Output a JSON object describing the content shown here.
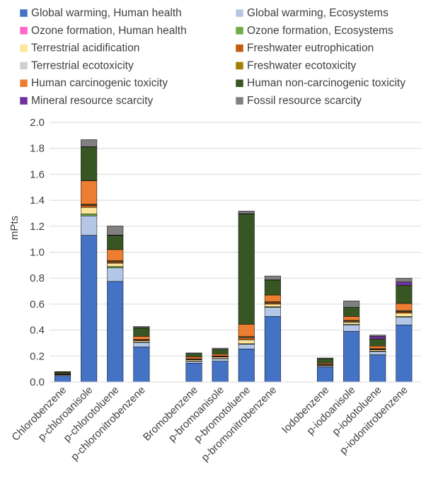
{
  "chart_data": {
    "type": "bar",
    "stacked": true,
    "ylabel": "mPts",
    "ylim": [
      0,
      2.0
    ],
    "yticks": [
      "0.0",
      "0.2",
      "0.4",
      "0.6",
      "0.8",
      "1.0",
      "1.2",
      "1.4",
      "1.6",
      "1.8",
      "2.0"
    ],
    "grid": true,
    "legend_position": "top",
    "groups": [
      [
        "Chlorobenzene",
        "p-chloroanisole",
        "p-chlorotoluene",
        "p-chloronitrobenzene"
      ],
      [
        "Bromobenzene",
        "p-bromoanisole",
        "p-bromotoluene",
        "p-bromonitrobenzene"
      ],
      [
        "Iodobenzene",
        "p-iodoanisole",
        "p-iodotoluene",
        "p-iodonitrobenzene"
      ]
    ],
    "categories": [
      "Chlorobenzene",
      "p-chloroanisole",
      "p-chlorotoluene",
      "p-chloronitrobenzene",
      "Bromobenzene",
      "p-bromoanisole",
      "p-bromotoluene",
      "p-bromonitrobenzene",
      "Iodobenzene",
      "p-iodoanisole",
      "p-iodotoluene",
      "p-iodonitrobenzene"
    ],
    "series": [
      {
        "name": "Global warming, Human health",
        "color": "#4472C4",
        "values": [
          0.045,
          1.13,
          0.775,
          0.27,
          0.145,
          0.16,
          0.255,
          0.505,
          0.115,
          0.39,
          0.21,
          0.44
        ]
      },
      {
        "name": "Global warming,  Ecosystems",
        "color": "#B4C7E7",
        "values": [
          0.008,
          0.15,
          0.105,
          0.035,
          0.015,
          0.02,
          0.035,
          0.07,
          0.01,
          0.05,
          0.025,
          0.06
        ]
      },
      {
        "name": "Ozone formation, Human health",
        "color": "#FF66CC",
        "values": [
          0,
          0,
          0,
          0,
          0,
          0,
          0,
          0,
          0,
          0,
          0,
          0
        ]
      },
      {
        "name": "Ozone formation, Ecosystems",
        "color": "#70AD47",
        "values": [
          0.001,
          0.015,
          0.01,
          0.003,
          0.002,
          0.002,
          0.005,
          0.005,
          0.001,
          0.005,
          0.003,
          0.005
        ]
      },
      {
        "name": "Terrestrial acidification",
        "color": "#FFE699",
        "values": [
          0.003,
          0.05,
          0.025,
          0.01,
          0.01,
          0.01,
          0.03,
          0.02,
          0.005,
          0.015,
          0.01,
          0.025
        ]
      },
      {
        "name": "Freshwater eutrophication",
        "color": "#C55A11",
        "values": [
          0.001,
          0.015,
          0.01,
          0.005,
          0.003,
          0.005,
          0.015,
          0.01,
          0.002,
          0.005,
          0.005,
          0.01
        ]
      },
      {
        "name": "Terrestrial ecotoxicity",
        "color": "#D0D0D0",
        "values": [
          0.001,
          0.005,
          0.005,
          0.002,
          0.002,
          0.002,
          0.005,
          0.005,
          0.001,
          0.005,
          0.002,
          0.005
        ]
      },
      {
        "name": "Freshwater ecotoxicity",
        "color": "#A08000",
        "values": [
          0.001,
          0.005,
          0.005,
          0.002,
          0.002,
          0.002,
          0.005,
          0.005,
          0.001,
          0.005,
          0.002,
          0.005
        ]
      },
      {
        "name": "Human carcinogenic toxicity",
        "color": "#ED7D31",
        "values": [
          0.005,
          0.18,
          0.085,
          0.025,
          0.015,
          0.015,
          0.095,
          0.05,
          0.01,
          0.03,
          0.02,
          0.055
        ]
      },
      {
        "name": "Human non-carcinogenic toxicity",
        "color": "#375623",
        "values": [
          0.012,
          0.26,
          0.11,
          0.065,
          0.025,
          0.035,
          0.85,
          0.115,
          0.035,
          0.07,
          0.055,
          0.14
        ]
      },
      {
        "name": "Mineral resource scarcity",
        "color": "#7030A0",
        "values": [
          0,
          0.002,
          0.002,
          0.001,
          0,
          0,
          0.002,
          0.002,
          0,
          0,
          0.02,
          0.025
        ]
      },
      {
        "name": "Fossil resource scarcity",
        "color": "#808080",
        "values": [
          0.003,
          0.055,
          0.07,
          0.01,
          0.005,
          0.01,
          0.02,
          0.03,
          0.005,
          0.05,
          0.01,
          0.03
        ]
      }
    ]
  }
}
